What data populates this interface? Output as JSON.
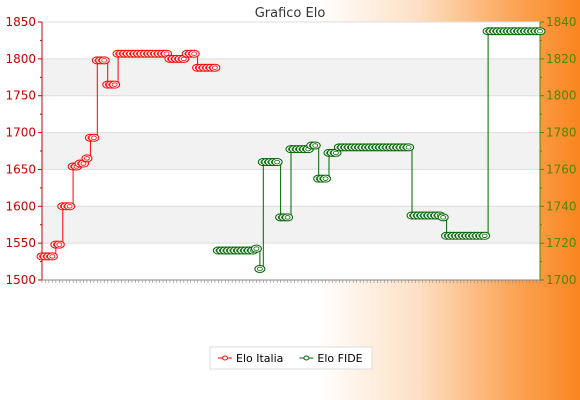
{
  "chart_data": {
    "type": "line",
    "title": "Grafico Elo",
    "y_left": {
      "ylim": [
        1500,
        1850
      ],
      "ticks": [
        1500,
        1550,
        1600,
        1650,
        1700,
        1750,
        1800,
        1850
      ],
      "color": "#cc0000"
    },
    "y_right": {
      "ylim": [
        1700,
        1840
      ],
      "ticks": [
        1700,
        1720,
        1740,
        1760,
        1780,
        1800,
        1820,
        1840
      ],
      "color": "#4a8a00"
    },
    "grid": true,
    "legend_position": "bottom",
    "series": [
      {
        "name": "Elo Italia",
        "axis": "left",
        "color": "#ff0000",
        "values": [
          1532,
          1532,
          1532,
          1532,
          1548,
          1548,
          1600,
          1600,
          1600,
          1654,
          1654,
          1658,
          1658,
          1665,
          1693,
          1693,
          1798,
          1798,
          1798,
          1765,
          1765,
          1765,
          1807,
          1807,
          1807,
          1807,
          1807,
          1807,
          1807,
          1807,
          1807,
          1807,
          1807,
          1807,
          1807,
          1807,
          1807,
          1800,
          1800,
          1800,
          1800,
          1800,
          1807,
          1807,
          1807,
          1788,
          1788,
          1788,
          1788,
          1788,
          1788
        ]
      },
      {
        "name": "Elo FIDE",
        "axis": "right",
        "color": "#006400",
        "values": [
          1716,
          1716,
          1716,
          1716,
          1716,
          1716,
          1716,
          1716,
          1716,
          1716,
          1716,
          1717,
          1706,
          1764,
          1764,
          1764,
          1764,
          1764,
          1734,
          1734,
          1734,
          1771,
          1771,
          1771,
          1771,
          1771,
          1771,
          1773,
          1773,
          1755,
          1755,
          1755,
          1769,
          1769,
          1769,
          1772,
          1772,
          1772,
          1772,
          1772,
          1772,
          1772,
          1772,
          1772,
          1772,
          1772,
          1772,
          1772,
          1772,
          1772,
          1772,
          1772,
          1772,
          1772,
          1772,
          1772,
          1735,
          1735,
          1735,
          1735,
          1735,
          1735,
          1735,
          1735,
          1735,
          1734,
          1724,
          1724,
          1724,
          1724,
          1724,
          1724,
          1724,
          1724,
          1724,
          1724,
          1724,
          1724,
          1835,
          1835,
          1835,
          1835,
          1835,
          1835,
          1835,
          1835,
          1835,
          1835,
          1835,
          1835,
          1835,
          1835,
          1835,
          1835
        ]
      }
    ]
  }
}
